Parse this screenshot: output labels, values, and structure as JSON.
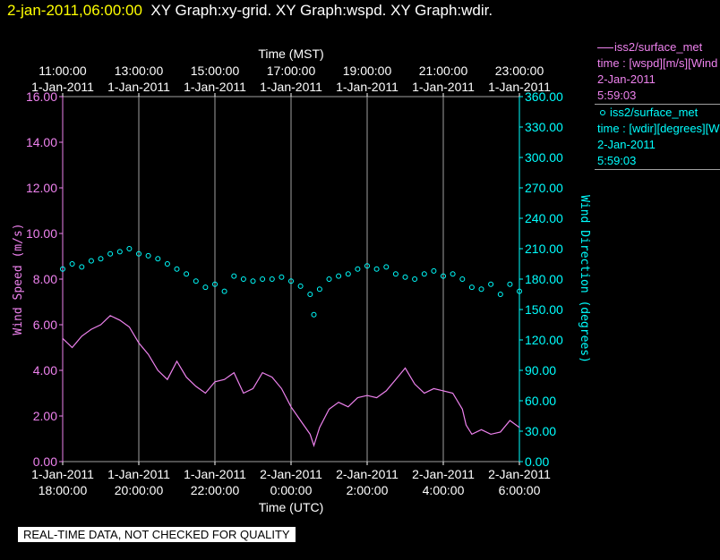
{
  "header": {
    "datetime": "2-jan-2011,06:00:00",
    "graph_titles": "XY Graph:xy-grid.  XY Graph:wspd.  XY Graph:wdir."
  },
  "legend": [
    {
      "name": "iss2/surface_met",
      "line": "time : [wspd][m/s][Wind",
      "date": "2-Jan-2011",
      "time": "5:59:03",
      "color": "#ee82ee",
      "marker": "line"
    },
    {
      "name": "iss2/surface_met",
      "line": "time : [wdir][degrees][W",
      "date": "2-Jan-2011",
      "time": "5:59:03",
      "color": "#00ffff",
      "marker": "circle"
    }
  ],
  "disclaimer": "REAL-TIME DATA, NOT CHECKED FOR QUALITY",
  "chart_data": {
    "type": "line",
    "title": "",
    "x_axis_bottom": {
      "label": "Time (UTC)",
      "range": [
        18.0,
        30.0
      ],
      "ticks": [
        {
          "x": 18,
          "date": "1-Jan-2011",
          "time": "18:00:00"
        },
        {
          "x": 20,
          "date": "1-Jan-2011",
          "time": "20:00:00"
        },
        {
          "x": 22,
          "date": "1-Jan-2011",
          "time": "22:00:00"
        },
        {
          "x": 24,
          "date": "2-Jan-2011",
          "time": "0:00:00"
        },
        {
          "x": 26,
          "date": "2-Jan-2011",
          "time": "2:00:00"
        },
        {
          "x": 28,
          "date": "2-Jan-2011",
          "time": "4:00:00"
        },
        {
          "x": 30,
          "date": "2-Jan-2011",
          "time": "6:00:00"
        }
      ]
    },
    "x_axis_top": {
      "label": "Time (MST)",
      "ticks": [
        {
          "x": 18,
          "date": "1-Jan-2011",
          "time": "11:00:00"
        },
        {
          "x": 20,
          "date": "1-Jan-2011",
          "time": "13:00:00"
        },
        {
          "x": 22,
          "date": "1-Jan-2011",
          "time": "15:00:00"
        },
        {
          "x": 24,
          "date": "1-Jan-2011",
          "time": "17:00:00"
        },
        {
          "x": 26,
          "date": "1-Jan-2011",
          "time": "19:00:00"
        },
        {
          "x": 28,
          "date": "1-Jan-2011",
          "time": "21:00:00"
        },
        {
          "x": 30,
          "date": "1-Jan-2011",
          "time": "23:00:00"
        }
      ]
    },
    "y_axis_left": {
      "label": "Wind Speed (m/s)",
      "range": [
        0,
        16
      ],
      "ticks": [
        "0.00",
        "2.00",
        "4.00",
        "6.00",
        "8.00",
        "10.00",
        "12.00",
        "14.00",
        "16.00"
      ],
      "color": "#ee82ee"
    },
    "y_axis_right": {
      "label": "Wind Direction (degrees)",
      "range": [
        0,
        360
      ],
      "ticks": [
        "0.00",
        "30.00",
        "60.00",
        "90.00",
        "120.00",
        "150.00",
        "180.00",
        "210.00",
        "240.00",
        "270.00",
        "300.00",
        "330.00",
        "360.00"
      ],
      "color": "#00ffff"
    },
    "grid": "vertical",
    "series": [
      {
        "axis": "left",
        "color": "#ee82ee",
        "style": "line",
        "points": [
          [
            18.0,
            5.4
          ],
          [
            18.25,
            5.0
          ],
          [
            18.5,
            5.5
          ],
          [
            18.75,
            5.8
          ],
          [
            19.0,
            6.0
          ],
          [
            19.25,
            6.4
          ],
          [
            19.5,
            6.2
          ],
          [
            19.75,
            5.9
          ],
          [
            20.0,
            5.2
          ],
          [
            20.25,
            4.7
          ],
          [
            20.5,
            4.0
          ],
          [
            20.75,
            3.6
          ],
          [
            21.0,
            4.4
          ],
          [
            21.25,
            3.7
          ],
          [
            21.5,
            3.3
          ],
          [
            21.75,
            3.0
          ],
          [
            22.0,
            3.5
          ],
          [
            22.25,
            3.6
          ],
          [
            22.5,
            3.9
          ],
          [
            22.75,
            3.0
          ],
          [
            23.0,
            3.2
          ],
          [
            23.25,
            3.9
          ],
          [
            23.5,
            3.7
          ],
          [
            23.75,
            3.2
          ],
          [
            24.0,
            2.4
          ],
          [
            24.25,
            1.8
          ],
          [
            24.5,
            1.2
          ],
          [
            24.6,
            0.7
          ],
          [
            24.75,
            1.5
          ],
          [
            25.0,
            2.3
          ],
          [
            25.25,
            2.6
          ],
          [
            25.5,
            2.4
          ],
          [
            25.75,
            2.8
          ],
          [
            26.0,
            2.9
          ],
          [
            26.25,
            2.8
          ],
          [
            26.5,
            3.1
          ],
          [
            26.75,
            3.6
          ],
          [
            27.0,
            4.1
          ],
          [
            27.25,
            3.4
          ],
          [
            27.5,
            3.0
          ],
          [
            27.75,
            3.2
          ],
          [
            28.0,
            3.1
          ],
          [
            28.25,
            3.0
          ],
          [
            28.5,
            2.3
          ],
          [
            28.6,
            1.6
          ],
          [
            28.75,
            1.2
          ],
          [
            29.0,
            1.4
          ],
          [
            29.25,
            1.2
          ],
          [
            29.5,
            1.3
          ],
          [
            29.75,
            1.8
          ],
          [
            30.0,
            1.5
          ]
        ]
      },
      {
        "axis": "right",
        "color": "#00ffff",
        "style": "circle",
        "points": [
          [
            18.0,
            190
          ],
          [
            18.25,
            195
          ],
          [
            18.5,
            192
          ],
          [
            18.75,
            198
          ],
          [
            19.0,
            200
          ],
          [
            19.25,
            205
          ],
          [
            19.5,
            207
          ],
          [
            19.75,
            210
          ],
          [
            20.0,
            205
          ],
          [
            20.25,
            203
          ],
          [
            20.5,
            200
          ],
          [
            20.75,
            195
          ],
          [
            21.0,
            190
          ],
          [
            21.25,
            185
          ],
          [
            21.5,
            178
          ],
          [
            21.75,
            172
          ],
          [
            22.0,
            175
          ],
          [
            22.25,
            168
          ],
          [
            22.5,
            183
          ],
          [
            22.75,
            180
          ],
          [
            23.0,
            178
          ],
          [
            23.25,
            180
          ],
          [
            23.5,
            180
          ],
          [
            23.75,
            182
          ],
          [
            24.0,
            178
          ],
          [
            24.25,
            173
          ],
          [
            24.5,
            165
          ],
          [
            24.6,
            145
          ],
          [
            24.75,
            170
          ],
          [
            25.0,
            180
          ],
          [
            25.25,
            183
          ],
          [
            25.5,
            185
          ],
          [
            25.75,
            190
          ],
          [
            26.0,
            193
          ],
          [
            26.25,
            190
          ],
          [
            26.5,
            192
          ],
          [
            26.75,
            185
          ],
          [
            27.0,
            182
          ],
          [
            27.25,
            180
          ],
          [
            27.5,
            185
          ],
          [
            27.75,
            188
          ],
          [
            28.0,
            183
          ],
          [
            28.25,
            185
          ],
          [
            28.5,
            180
          ],
          [
            28.75,
            172
          ],
          [
            29.0,
            170
          ],
          [
            29.25,
            175
          ],
          [
            29.5,
            165
          ],
          [
            29.75,
            175
          ],
          [
            30.0,
            168
          ]
        ]
      }
    ]
  }
}
